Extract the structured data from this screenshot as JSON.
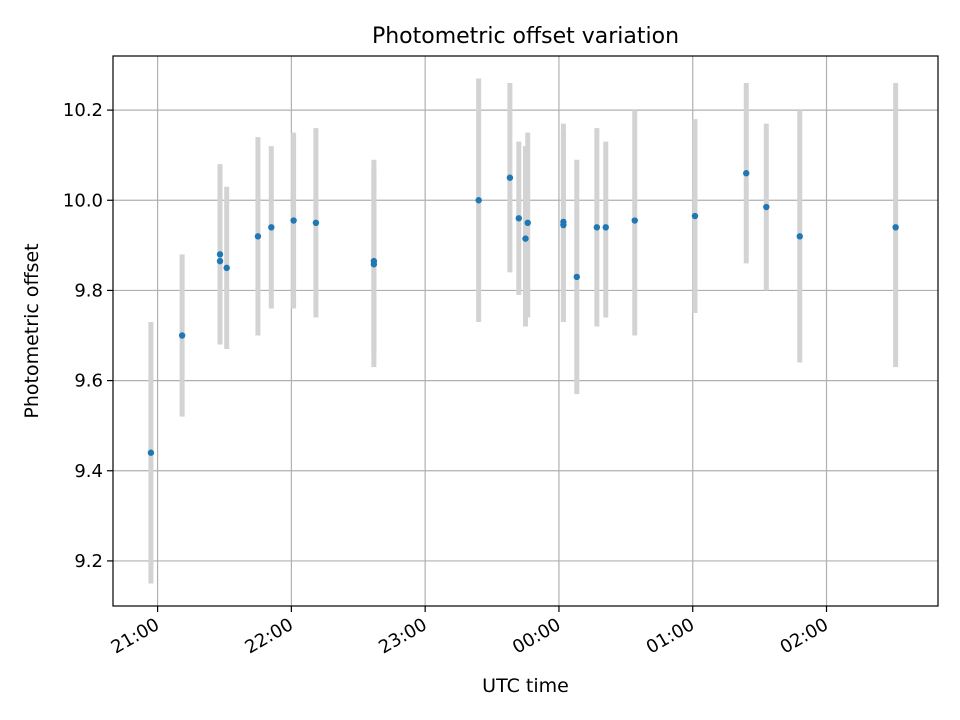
{
  "chart_data": {
    "type": "scatter",
    "title": "Photometric offset variation",
    "xlabel": "UTC time",
    "ylabel": "Photometric offset",
    "x_tick_labels": [
      "21:00",
      "22:00",
      "23:00",
      "00:00",
      "01:00",
      "02:00"
    ],
    "y_tick_labels": [
      "9.2",
      "9.4",
      "9.6",
      "9.8",
      "10.0",
      "10.2"
    ],
    "x_ticks": [
      "21:00",
      "22:00",
      "23:00",
      "00:00",
      "01:00",
      "02:00"
    ],
    "y_ticks": [
      9.2,
      9.4,
      9.6,
      9.8,
      10.0,
      10.2
    ],
    "xlim": [
      "20:40",
      "26:50"
    ],
    "ylim": [
      9.1,
      10.32
    ],
    "grid": true,
    "point_color": "#1f77b4",
    "errorbar_color": "#d3d3d3",
    "points": [
      {
        "x": "20:57",
        "y": 9.44,
        "yerr_low": 9.15,
        "yerr_high": 9.73
      },
      {
        "x": "21:11",
        "y": 9.7,
        "yerr_low": 9.52,
        "yerr_high": 9.88
      },
      {
        "x": "21:28",
        "y": 9.88,
        "yerr_low": 9.68,
        "yerr_high": 10.08
      },
      {
        "x": "21:28",
        "y": 9.865,
        "yerr_low": 9.68,
        "yerr_high": 10.08
      },
      {
        "x": "21:31",
        "y": 9.85,
        "yerr_low": 9.67,
        "yerr_high": 10.03
      },
      {
        "x": "21:45",
        "y": 9.92,
        "yerr_low": 9.7,
        "yerr_high": 10.14
      },
      {
        "x": "21:51",
        "y": 9.94,
        "yerr_low": 9.76,
        "yerr_high": 10.12
      },
      {
        "x": "22:01",
        "y": 9.955,
        "yerr_low": 9.76,
        "yerr_high": 10.15
      },
      {
        "x": "22:11",
        "y": 9.95,
        "yerr_low": 9.74,
        "yerr_high": 10.16
      },
      {
        "x": "22:37",
        "y": 9.865,
        "yerr_low": 9.66,
        "yerr_high": 10.07
      },
      {
        "x": "22:37",
        "y": 9.858,
        "yerr_low": 9.63,
        "yerr_high": 10.09
      },
      {
        "x": "23:24",
        "y": 10.0,
        "yerr_low": 9.73,
        "yerr_high": 10.27
      },
      {
        "x": "23:38",
        "y": 10.05,
        "yerr_low": 9.84,
        "yerr_high": 10.26
      },
      {
        "x": "23:42",
        "y": 9.96,
        "yerr_low": 9.79,
        "yerr_high": 10.13
      },
      {
        "x": "23:45",
        "y": 9.915,
        "yerr_low": 9.72,
        "yerr_high": 10.12
      },
      {
        "x": "23:46",
        "y": 9.95,
        "yerr_low": 9.74,
        "yerr_high": 10.15
      },
      {
        "x": "24:02",
        "y": 9.945,
        "yerr_low": 9.73,
        "yerr_high": 10.15
      },
      {
        "x": "24:02",
        "y": 9.952,
        "yerr_low": 9.73,
        "yerr_high": 10.17
      },
      {
        "x": "24:08",
        "y": 9.83,
        "yerr_low": 9.57,
        "yerr_high": 10.09
      },
      {
        "x": "24:17",
        "y": 9.94,
        "yerr_low": 9.72,
        "yerr_high": 10.16
      },
      {
        "x": "24:21",
        "y": 9.94,
        "yerr_low": 9.74,
        "yerr_high": 10.13
      },
      {
        "x": "24:34",
        "y": 9.955,
        "yerr_low": 9.7,
        "yerr_high": 10.2
      },
      {
        "x": "25:01",
        "y": 9.965,
        "yerr_low": 9.75,
        "yerr_high": 10.18
      },
      {
        "x": "25:24",
        "y": 10.06,
        "yerr_low": 9.86,
        "yerr_high": 10.26
      },
      {
        "x": "25:33",
        "y": 9.985,
        "yerr_low": 9.8,
        "yerr_high": 10.17
      },
      {
        "x": "25:48",
        "y": 9.92,
        "yerr_low": 9.64,
        "yerr_high": 10.2
      },
      {
        "x": "26:31",
        "y": 9.94,
        "yerr_low": 9.63,
        "yerr_high": 10.26
      }
    ]
  }
}
